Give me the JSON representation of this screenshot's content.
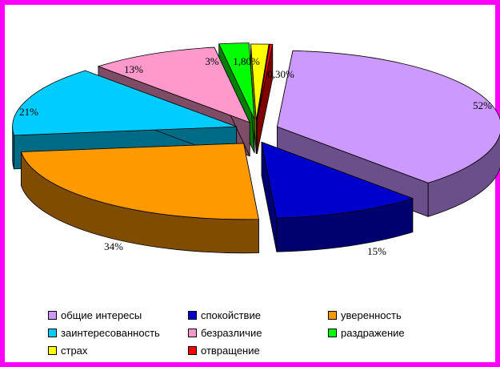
{
  "chart_data": {
    "type": "pie",
    "style": "3d-exploded",
    "legend_position": "bottom",
    "slices": [
      {
        "name": "общие интересы",
        "value": 52,
        "label": "52%",
        "color": "#cc99ff",
        "side": "#6b4f8a"
      },
      {
        "name": "спокойствие",
        "value": 15,
        "label": "15%",
        "color": "#0000cc",
        "side": "#00006e"
      },
      {
        "name": "уверенность",
        "value": 34,
        "label": "34%",
        "color": "#ff9900",
        "side": "#7f4c00"
      },
      {
        "name": "заинтересованность",
        "value": 21,
        "label": "21%",
        "color": "#00ccff",
        "side": "#006b84"
      },
      {
        "name": "безразличие",
        "value": 13,
        "label": "13%",
        "color": "#ff99cc",
        "side": "#7f4c66"
      },
      {
        "name": "раздражение",
        "value": 3,
        "label": "3%",
        "color": "#00ff00",
        "side": "#007f00"
      },
      {
        "name": "страх",
        "value": 1.8,
        "label": "1,80%",
        "color": "#ffff00",
        "side": "#7f7f00"
      },
      {
        "name": "отвращение",
        "value": 0.3,
        "label": "0,30%",
        "color": "#ff0000",
        "side": "#7f0000"
      }
    ],
    "legend_order": [
      "общие интересы",
      "спокойствие",
      "уверенность",
      "заинтересованность",
      "безразличие",
      "раздражение",
      "страх",
      "отвращение"
    ]
  }
}
